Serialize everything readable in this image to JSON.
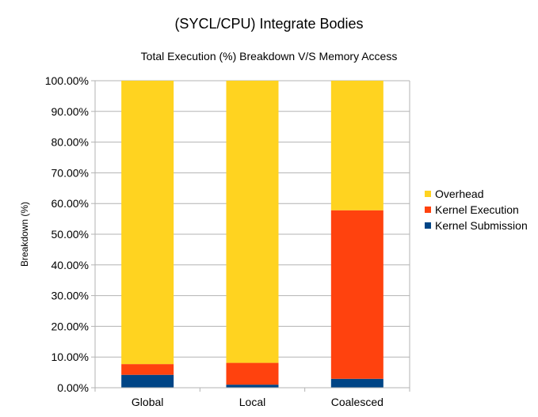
{
  "chart_data": {
    "type": "bar",
    "stacked": true,
    "title": "(SYCL/CPU) Integrate Bodies",
    "subtitle": "Total Execution (%) Breakdown V/S Memory Access",
    "xlabel": "",
    "ylabel": "Breakdown (%)",
    "ylim": [
      0,
      100
    ],
    "yticks": [
      "0.00%",
      "10.00%",
      "20.00%",
      "30.00%",
      "40.00%",
      "50.00%",
      "60.00%",
      "70.00%",
      "80.00%",
      "90.00%",
      "100.00%"
    ],
    "categories": [
      "Global",
      "Local",
      "Coalesced"
    ],
    "series": [
      {
        "name": "Kernel Submission",
        "color": "#004586",
        "values": [
          4.2,
          1.0,
          2.9
        ]
      },
      {
        "name": "Kernel Execution",
        "color": "#ff420e",
        "values": [
          3.5,
          7.1,
          54.9
        ]
      },
      {
        "name": "Overhead",
        "color": "#ffd320",
        "values": [
          92.3,
          91.9,
          42.2
        ]
      }
    ],
    "legend_order": [
      "Overhead",
      "Kernel Execution",
      "Kernel Submission"
    ],
    "legend_position": "right",
    "grid": true
  }
}
